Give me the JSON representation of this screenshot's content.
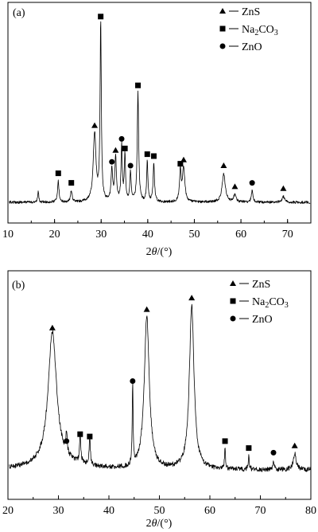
{
  "chart_data": [
    {
      "type": "line",
      "panel_label": "(a)",
      "xlabel_main": "2",
      "xlabel_theta": "θ",
      "xlabel_unit": "/(°)",
      "xlim": [
        10,
        75
      ],
      "x_ticks": [
        "10",
        "20",
        "30",
        "40",
        "50",
        "60",
        "70"
      ],
      "y_ticks_shown": false,
      "legend": [
        {
          "marker": "triangle",
          "text": "ZnS",
          "sub": ""
        },
        {
          "marker": "square",
          "text": "Na",
          "sub": "2",
          "text2": "CO",
          "sub2": "3"
        },
        {
          "marker": "circle",
          "text": "ZnO",
          "sub": ""
        }
      ],
      "baseline": 0.06,
      "peaks": [
        {
          "x": 16.5,
          "h": 0.06,
          "w": 0.12,
          "marker": null
        },
        {
          "x": 20.8,
          "h": 0.11,
          "w": 0.18,
          "marker": "square"
        },
        {
          "x": 23.6,
          "h": 0.06,
          "w": 0.2,
          "marker": "square"
        },
        {
          "x": 28.6,
          "h": 0.36,
          "w": 0.35,
          "marker": "triangle"
        },
        {
          "x": 29.9,
          "h": 0.93,
          "w": 0.16,
          "marker": "square"
        },
        {
          "x": 32.3,
          "h": 0.17,
          "w": 0.2,
          "marker": "circle"
        },
        {
          "x": 33.1,
          "h": 0.23,
          "w": 0.2,
          "marker": "triangle"
        },
        {
          "x": 34.4,
          "h": 0.29,
          "w": 0.16,
          "marker": "circle"
        },
        {
          "x": 35.1,
          "h": 0.24,
          "w": 0.16,
          "marker": "square"
        },
        {
          "x": 36.3,
          "h": 0.15,
          "w": 0.18,
          "marker": "circle"
        },
        {
          "x": 37.9,
          "h": 0.57,
          "w": 0.18,
          "marker": "square"
        },
        {
          "x": 39.9,
          "h": 0.21,
          "w": 0.16,
          "marker": "square"
        },
        {
          "x": 41.3,
          "h": 0.2,
          "w": 0.18,
          "marker": "square"
        },
        {
          "x": 47.0,
          "h": 0.16,
          "w": 0.2,
          "marker": "square"
        },
        {
          "x": 47.7,
          "h": 0.18,
          "w": 0.3,
          "marker": "triangle"
        },
        {
          "x": 56.3,
          "h": 0.15,
          "w": 0.4,
          "marker": "triangle"
        },
        {
          "x": 58.7,
          "h": 0.04,
          "w": 0.3,
          "marker": "triangle"
        },
        {
          "x": 62.4,
          "h": 0.06,
          "w": 0.2,
          "marker": "circle"
        },
        {
          "x": 69.1,
          "h": 0.03,
          "w": 0.3,
          "marker": "triangle"
        }
      ]
    },
    {
      "type": "line",
      "panel_label": "(b)",
      "xlabel_main": "2",
      "xlabel_theta": "θ",
      "xlabel_unit": "/(°)",
      "xlim": [
        20,
        80
      ],
      "x_ticks": [
        "20",
        "30",
        "40",
        "50",
        "60",
        "70",
        "80"
      ],
      "y_ticks_shown": false,
      "legend": [
        {
          "marker": "triangle",
          "text": "ZnS",
          "sub": ""
        },
        {
          "marker": "square",
          "text": "Na",
          "sub": "2",
          "text2": "CO",
          "sub2": "3"
        },
        {
          "marker": "circle",
          "text": "ZnO",
          "sub": ""
        }
      ],
      "baseline": 0.08,
      "peaks": [
        {
          "x": 28.8,
          "h": 0.58,
          "w": 1.0,
          "marker": "triangle"
        },
        {
          "x": 31.6,
          "h": 0.09,
          "w": 0.15,
          "marker": "circle"
        },
        {
          "x": 34.3,
          "h": 0.12,
          "w": 0.15,
          "marker": "square"
        },
        {
          "x": 36.2,
          "h": 0.11,
          "w": 0.15,
          "marker": "square"
        },
        {
          "x": 44.7,
          "h": 0.35,
          "w": 0.1,
          "marker": "circle"
        },
        {
          "x": 47.5,
          "h": 0.66,
          "w": 0.6,
          "marker": "triangle"
        },
        {
          "x": 56.4,
          "h": 0.71,
          "w": 0.55,
          "marker": "triangle"
        },
        {
          "x": 63.0,
          "h": 0.09,
          "w": 0.12,
          "marker": "square"
        },
        {
          "x": 67.7,
          "h": 0.06,
          "w": 0.12,
          "marker": "square"
        },
        {
          "x": 72.6,
          "h": 0.04,
          "w": 0.15,
          "marker": "circle"
        },
        {
          "x": 76.8,
          "h": 0.07,
          "w": 0.35,
          "marker": "triangle"
        }
      ]
    }
  ]
}
